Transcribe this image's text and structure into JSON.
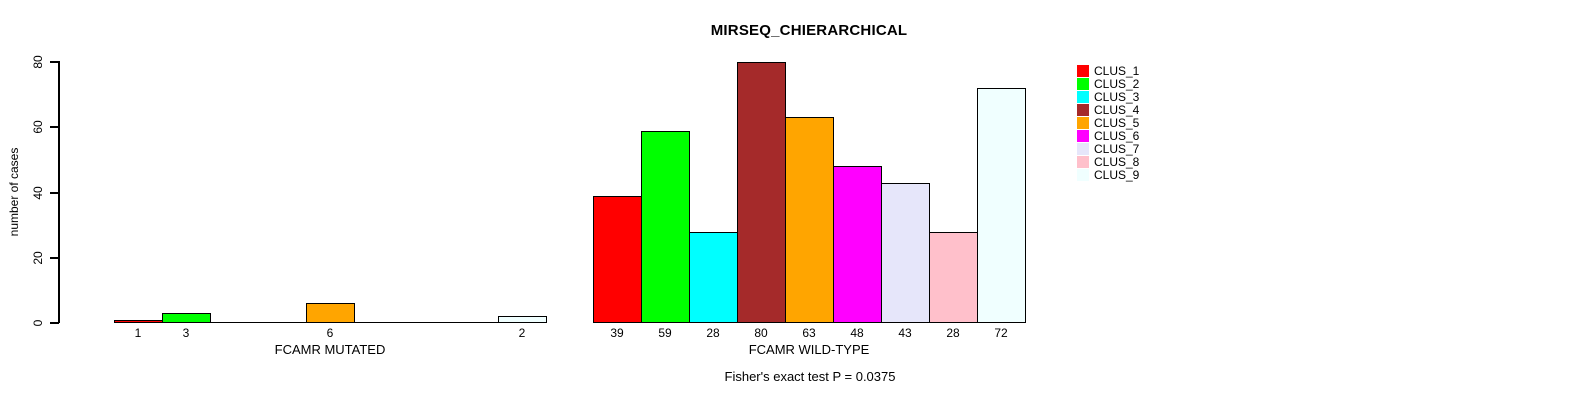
{
  "chart_data": {
    "type": "bar",
    "title": "MIRSEQ_CHIERARCHICAL",
    "ylabel": "number of cases",
    "xlabel": "",
    "ylim": [
      0,
      80
    ],
    "yticks": [
      0,
      20,
      40,
      60,
      80
    ],
    "grid": false,
    "legend_position": "right",
    "categories": [
      "FCAMR MUTATED",
      "FCAMR WILD-TYPE"
    ],
    "series": [
      {
        "name": "CLUS_1",
        "color": "#FF0000",
        "values": [
          1,
          39
        ]
      },
      {
        "name": "CLUS_2",
        "color": "#00FF00",
        "values": [
          3,
          59
        ]
      },
      {
        "name": "CLUS_3",
        "color": "#00FFFF",
        "values": [
          0,
          28
        ]
      },
      {
        "name": "CLUS_4",
        "color": "#A52A2A",
        "values": [
          0,
          80
        ]
      },
      {
        "name": "CLUS_5",
        "color": "#FFA500",
        "values": [
          6,
          63
        ]
      },
      {
        "name": "CLUS_6",
        "color": "#FF00FF",
        "values": [
          0,
          48
        ]
      },
      {
        "name": "CLUS_7",
        "color": "#E6E6FA",
        "values": [
          0,
          43
        ]
      },
      {
        "name": "CLUS_8",
        "color": "#FFC0CB",
        "values": [
          0,
          28
        ]
      },
      {
        "name": "CLUS_9",
        "color": "#F0FFFF",
        "values": [
          2,
          72
        ]
      }
    ],
    "bar_value_labels": {
      "FCAMR MUTATED": [
        1,
        3,
        null,
        null,
        6,
        null,
        null,
        null,
        2
      ],
      "FCAMR WILD-TYPE": [
        39,
        59,
        28,
        80,
        63,
        48,
        43,
        28,
        72
      ]
    },
    "annotation": "Fisher's exact test P = 0.0375"
  },
  "colors": {
    "axis": "#000000",
    "text": "#000000",
    "background": "#FFFFFF"
  }
}
